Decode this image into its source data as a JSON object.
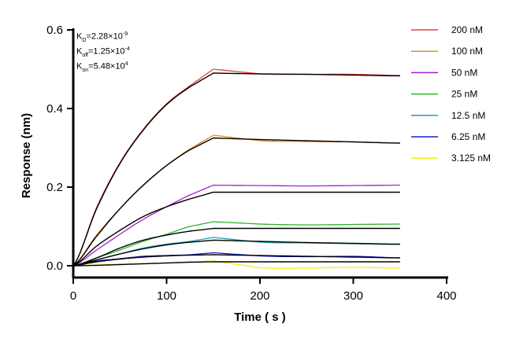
{
  "chart_data": {
    "type": "line",
    "xlabel": "Time ( s )",
    "ylabel": "Response (nm)",
    "xlim": [
      0,
      400
    ],
    "ylim": [
      -0.03,
      0.6
    ],
    "xticks": [
      "0",
      "100",
      "200",
      "300",
      "400"
    ],
    "yticks": [
      "0.0",
      "0.2",
      "0.4",
      "0.6"
    ],
    "xtick_values": [
      0,
      100,
      200,
      300,
      400
    ],
    "ytick_values": [
      0,
      0.2,
      0.4,
      0.6
    ],
    "legend_position": "top-right",
    "annotations": {
      "kd": {
        "main": "K",
        "sub": "D",
        "value": "=2.28×10",
        "exp": "-9"
      },
      "koff": {
        "main": "K",
        "sub": "off",
        "value": "=1.25×10",
        "exp": "-4"
      },
      "kon": {
        "main": "K",
        "sub": "on",
        "value": "=5.48×10",
        "exp": "4"
      }
    },
    "x": [
      0,
      25,
      50,
      75,
      100,
      125,
      150,
      200,
      250,
      300,
      350
    ],
    "fit_color": "#000000",
    "series": [
      {
        "name": "200 nM",
        "color": "#e8413c",
        "values": [
          0,
          0.148,
          0.262,
          0.347,
          0.412,
          0.458,
          0.5,
          0.488,
          0.487,
          0.487,
          0.484
        ],
        "fit": [
          0,
          0.145,
          0.26,
          0.345,
          0.41,
          0.455,
          0.49,
          0.488,
          0.487,
          0.485,
          0.483
        ]
      },
      {
        "name": "100 nM",
        "color": "#f08a24",
        "values": [
          0,
          0.078,
          0.145,
          0.204,
          0.255,
          0.297,
          0.332,
          0.318,
          0.316,
          0.315,
          0.312
        ],
        "fit": [
          0,
          0.075,
          0.145,
          0.205,
          0.255,
          0.295,
          0.325,
          0.321,
          0.318,
          0.315,
          0.312
        ]
      },
      {
        "name": "50 nM",
        "color": "#a020d0",
        "values": [
          0,
          0.04,
          0.08,
          0.118,
          0.15,
          0.18,
          0.205,
          0.204,
          0.203,
          0.204,
          0.205
        ],
        "fit": [
          0,
          0.05,
          0.09,
          0.125,
          0.15,
          0.17,
          0.187,
          0.187,
          0.187,
          0.187,
          0.187
        ]
      },
      {
        "name": "25 nM",
        "color": "#2cb52c",
        "values": [
          0,
          0.02,
          0.04,
          0.062,
          0.08,
          0.1,
          0.112,
          0.106,
          0.104,
          0.105,
          0.106
        ],
        "fit": [
          0,
          0.02,
          0.045,
          0.065,
          0.078,
          0.088,
          0.095,
          0.095,
          0.095,
          0.095,
          0.095
        ]
      },
      {
        "name": "12.5 nM",
        "color": "#1ea3b4",
        "values": [
          0,
          0.015,
          0.03,
          0.045,
          0.055,
          0.062,
          0.072,
          0.06,
          0.058,
          0.056,
          0.054
        ],
        "fit": [
          0,
          0.015,
          0.03,
          0.043,
          0.053,
          0.06,
          0.065,
          0.062,
          0.059,
          0.057,
          0.055
        ]
      },
      {
        "name": "6.25 nM",
        "color": "#1a1ad0",
        "values": [
          0,
          0.012,
          0.018,
          0.024,
          0.026,
          0.028,
          0.033,
          0.025,
          0.023,
          0.024,
          0.02
        ],
        "fit": [
          0,
          0.01,
          0.017,
          0.022,
          0.025,
          0.027,
          0.028,
          0.026,
          0.024,
          0.022,
          0.02
        ]
      },
      {
        "name": "3.125 nM",
        "color": "#f2ee1a",
        "values": [
          0,
          0.002,
          0.004,
          0.005,
          0.007,
          0.01,
          0.012,
          -0.005,
          -0.006,
          -0.004,
          -0.006
        ],
        "fit": [
          0,
          0.001,
          0.003,
          0.005,
          0.007,
          0.009,
          0.01,
          0.01,
          0.01,
          0.01,
          0.01
        ]
      }
    ]
  }
}
